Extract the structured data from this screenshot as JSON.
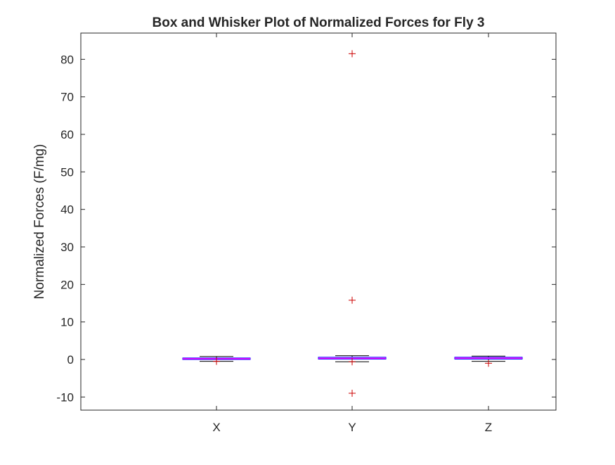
{
  "chart_data": {
    "type": "box",
    "title": "Box and Whisker Plot of Normalized Forces for Fly 3",
    "xlabel": "",
    "ylabel": "Normalized Forces (F/mg)",
    "categories": [
      "X",
      "Y",
      "Z"
    ],
    "ylim": [
      -13.5,
      87
    ],
    "yticks": [
      -10,
      0,
      10,
      20,
      30,
      40,
      50,
      60,
      70,
      80
    ],
    "grid": false,
    "boxes": [
      {
        "category": "X",
        "whisker_low": -0.5,
        "q1": 0.0,
        "median": 0.2,
        "q3": 0.4,
        "whisker_high": 0.8,
        "outliers": [
          -0.5
        ]
      },
      {
        "category": "Y",
        "whisker_low": -0.6,
        "q1": 0.1,
        "median": 0.3,
        "q3": 0.6,
        "whisker_high": 1.0,
        "outliers": [
          81.5,
          15.8,
          -0.6,
          -9.0
        ]
      },
      {
        "category": "Z",
        "whisker_low": -0.5,
        "q1": 0.1,
        "median": 0.35,
        "q3": 0.6,
        "whisker_high": 0.9,
        "outliers": [
          -1.0
        ]
      }
    ],
    "colors": {
      "box": "#0000ff",
      "median": "#ff00ff",
      "outlier": "#cc0000",
      "axis": "#262626"
    }
  }
}
